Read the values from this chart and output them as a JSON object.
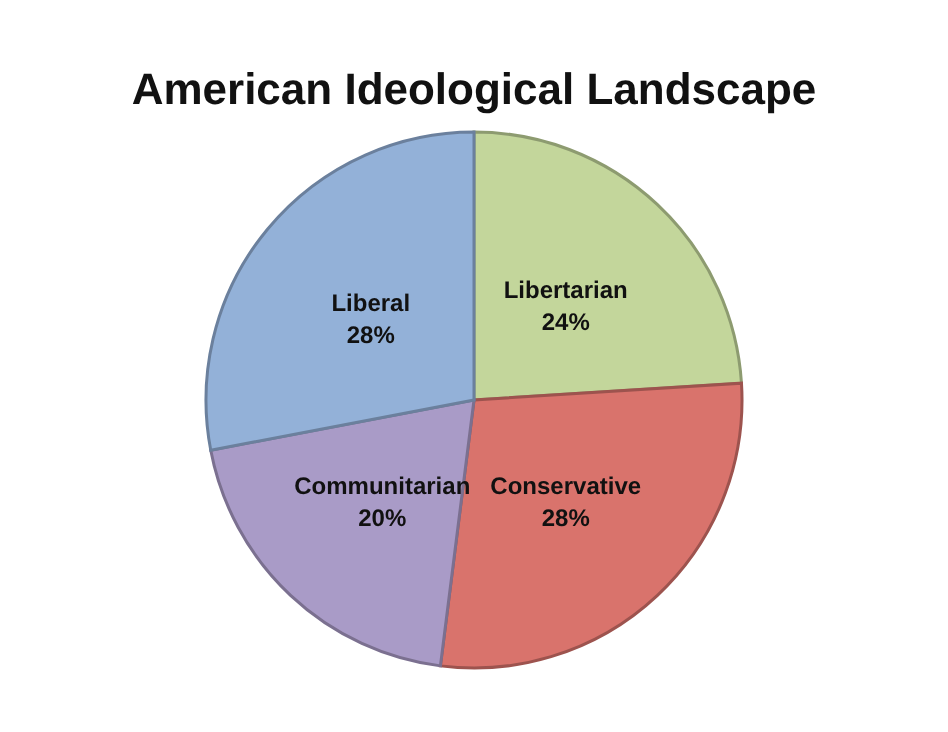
{
  "chart_data": {
    "type": "pie",
    "title": "American Ideological Landscape",
    "categories": [
      "Libertarian",
      "Conservative",
      "Communitarian",
      "Liberal"
    ],
    "values": [
      24,
      28,
      20,
      28
    ],
    "value_labels": [
      "24%",
      "28%",
      "20%",
      "28%"
    ],
    "colors": [
      "#c3d69b",
      "#d9736c",
      "#a99bc7",
      "#93b1d8"
    ]
  }
}
